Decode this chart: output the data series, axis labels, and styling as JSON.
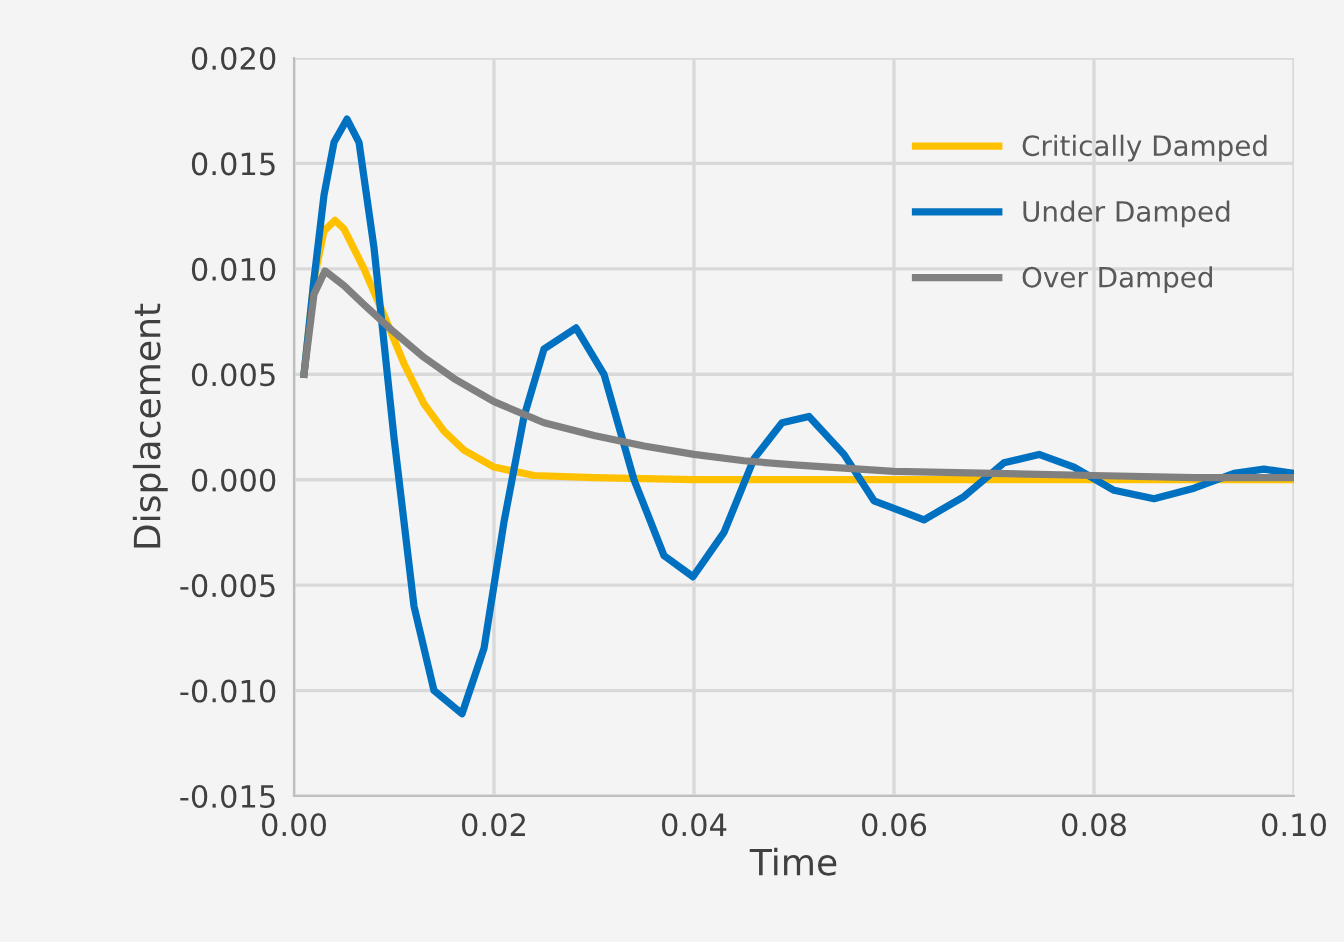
{
  "chart_data": {
    "type": "line",
    "xlabel": "Time",
    "ylabel": "Displacement",
    "xlim": [
      0,
      0.1
    ],
    "xticks": [
      {
        "value": 0,
        "label": "0.00"
      },
      {
        "value": 0.02,
        "label": "0.02"
      },
      {
        "value": 0.04,
        "label": "0.04"
      },
      {
        "value": 0.06,
        "label": "0.06"
      },
      {
        "value": 0.08,
        "label": "0.08"
      },
      {
        "value": 0.1,
        "label": "0.10"
      }
    ],
    "ylim": [
      -0.015,
      0.02
    ],
    "yticks": [
      {
        "value": -0.015,
        "label": "-0.015"
      },
      {
        "value": -0.01,
        "label": "-0.010"
      },
      {
        "value": -0.005,
        "label": "-0.005"
      },
      {
        "value": 0,
        "label": "0.000"
      },
      {
        "value": 0.005,
        "label": "0.005"
      },
      {
        "value": 0.01,
        "label": "0.010"
      },
      {
        "value": 0.015,
        "label": "0.015"
      },
      {
        "value": 0.02,
        "label": "0.020"
      }
    ],
    "grid": true,
    "legend": "top right",
    "marker": "none",
    "line_style": "solid",
    "series": [
      {
        "name": "Critically Damped",
        "color": "#ffc000",
        "x": [
          0.001,
          0.002,
          0.003,
          0.0041,
          0.005,
          0.007,
          0.009,
          0.011,
          0.013,
          0.015,
          0.017,
          0.02,
          0.024,
          0.03,
          0.04,
          0.06,
          0.08,
          0.1
        ],
        "values": [
          0.005,
          0.0095,
          0.0118,
          0.0123,
          0.0119,
          0.01,
          0.0078,
          0.0055,
          0.0036,
          0.0023,
          0.0014,
          0.0006,
          0.0002,
          0.0001,
          0,
          0,
          0,
          0
        ]
      },
      {
        "name": "Under Damped",
        "color": "#0070c0",
        "x": [
          0.001,
          0.002,
          0.003,
          0.004,
          0.0053,
          0.0065,
          0.008,
          0.01,
          0.012,
          0.014,
          0.0168,
          0.019,
          0.021,
          0.023,
          0.025,
          0.0282,
          0.031,
          0.034,
          0.037,
          0.0399,
          0.043,
          0.046,
          0.0488,
          0.0515,
          0.055,
          0.058,
          0.063,
          0.067,
          0.071,
          0.0745,
          0.078,
          0.082,
          0.086,
          0.09,
          0.094,
          0.097,
          0.1
        ],
        "values": [
          0.005,
          0.0095,
          0.0135,
          0.016,
          0.0171,
          0.016,
          0.011,
          0.002,
          -0.006,
          -0.01,
          -0.0111,
          -0.008,
          -0.002,
          0.003,
          0.0062,
          0.0072,
          0.005,
          0.0,
          -0.0036,
          -0.0046,
          -0.0025,
          0.001,
          0.0027,
          0.003,
          0.0012,
          -0.001,
          -0.0019,
          -0.0008,
          0.0008,
          0.0012,
          0.0006,
          -0.0005,
          -0.0009,
          -0.0004,
          0.0003,
          0.0005,
          0.0003
        ]
      },
      {
        "name": "Over Damped",
        "color": "#808080",
        "x": [
          0.001,
          0.002,
          0.0031,
          0.005,
          0.007,
          0.01,
          0.013,
          0.016,
          0.02,
          0.025,
          0.03,
          0.035,
          0.04,
          0.045,
          0.05,
          0.06,
          0.07,
          0.08,
          0.09,
          0.1
        ],
        "values": [
          0.005,
          0.0088,
          0.0099,
          0.0092,
          0.0083,
          0.007,
          0.0058,
          0.0048,
          0.0037,
          0.0027,
          0.0021,
          0.0016,
          0.0012,
          0.0009,
          0.0007,
          0.0004,
          0.0003,
          0.0002,
          0.0001,
          0.0001
        ]
      }
    ]
  }
}
